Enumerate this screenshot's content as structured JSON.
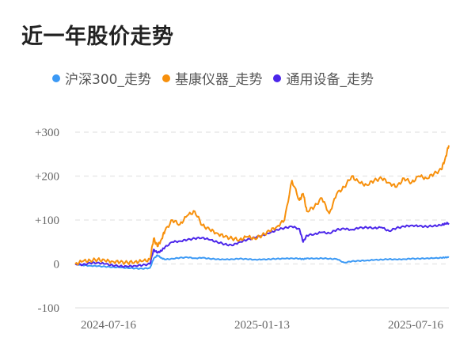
{
  "header": {
    "title": "近一年股价走势"
  },
  "legend": {
    "items": [
      {
        "label": "沪深300_走势",
        "color": "#3b99f5"
      },
      {
        "label": "基康仪器_走势",
        "color": "#f7900c"
      },
      {
        "label": "通用设备_走势",
        "color": "#4b26ea"
      }
    ]
  },
  "chart_data": {
    "type": "line",
    "title": "近一年股价走势",
    "xlabel": "",
    "ylabel": "",
    "ylim": [
      -100,
      300
    ],
    "yticks": [
      "+300",
      "+200",
      "+100",
      "0",
      "-100"
    ],
    "ytick_values": [
      300,
      200,
      100,
      0,
      -100
    ],
    "xticks": [
      "2024-07-16",
      "2025-01-13",
      "2025-07-16"
    ],
    "grid": "horizontal dashed",
    "legend_position": "top",
    "x": [
      0,
      0.02,
      0.04,
      0.06,
      0.08,
      0.1,
      0.12,
      0.14,
      0.16,
      0.18,
      0.2,
      0.21,
      0.22,
      0.23,
      0.24,
      0.26,
      0.28,
      0.3,
      0.32,
      0.34,
      0.36,
      0.38,
      0.4,
      0.42,
      0.44,
      0.46,
      0.48,
      0.5,
      0.52,
      0.54,
      0.56,
      0.58,
      0.6,
      0.61,
      0.62,
      0.64,
      0.66,
      0.68,
      0.7,
      0.72,
      0.74,
      0.76,
      0.78,
      0.8,
      0.82,
      0.84,
      0.86,
      0.88,
      0.9,
      0.92,
      0.94,
      0.96,
      0.98,
      0.99,
      1.0
    ],
    "series": [
      {
        "name": "沪深300_走势",
        "color": "#3b99f5",
        "values": [
          0,
          -3,
          -4,
          -5,
          -6,
          -7,
          -8,
          -9,
          -10,
          -11,
          -9,
          12,
          20,
          14,
          10,
          12,
          14,
          15,
          13,
          14,
          12,
          11,
          10,
          11,
          12,
          11,
          10,
          10,
          11,
          12,
          12,
          13,
          12,
          11,
          13,
          12,
          13,
          12,
          11,
          3,
          6,
          7,
          8,
          9,
          10,
          11,
          10,
          11,
          12,
          12,
          13,
          13,
          14,
          15,
          15
        ],
        "color_name": "blue"
      },
      {
        "name": "基康仪器_走势",
        "color": "#f7900c",
        "values": [
          0,
          6,
          8,
          10,
          7,
          6,
          4,
          3,
          5,
          6,
          10,
          58,
          40,
          55,
          75,
          100,
          90,
          110,
          120,
          88,
          78,
          70,
          62,
          58,
          55,
          62,
          58,
          65,
          75,
          85,
          100,
          190,
          145,
          160,
          120,
          130,
          150,
          115,
          160,
          175,
          200,
          185,
          180,
          190,
          195,
          185,
          175,
          195,
          185,
          200,
          195,
          205,
          215,
          240,
          270
        ],
        "color_name": "orange"
      },
      {
        "name": "通用设备_走势",
        "color": "#4b26ea",
        "values": [
          0,
          -2,
          2,
          3,
          0,
          -3,
          -5,
          -6,
          -4,
          -3,
          0,
          33,
          25,
          30,
          38,
          50,
          52,
          55,
          58,
          60,
          55,
          50,
          45,
          42,
          50,
          55,
          60,
          65,
          70,
          78,
          82,
          85,
          80,
          50,
          65,
          68,
          72,
          70,
          78,
          80,
          78,
          82,
          83,
          82,
          83,
          75,
          82,
          85,
          88,
          86,
          85,
          87,
          88,
          92,
          93
        ],
        "color_name": "purple"
      }
    ]
  }
}
